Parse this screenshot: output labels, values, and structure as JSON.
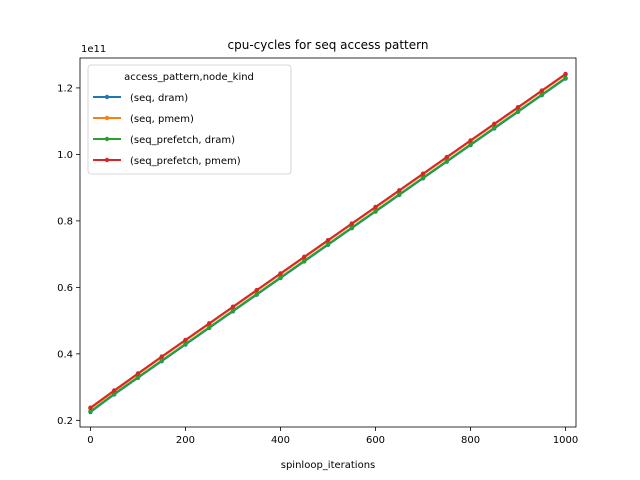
{
  "chart_data": {
    "type": "line",
    "title": "cpu-cycles for seq access pattern",
    "xlabel": "spinloop_iterations",
    "ylabel": "",
    "y_offset_label": "1e11",
    "xlim": [
      -22,
      1022
    ],
    "ylim": [
      0.18,
      1.29
    ],
    "y_scale": 100000000000.0,
    "xticks": [
      0,
      200,
      400,
      600,
      800,
      1000
    ],
    "yticks": [
      0.2,
      0.4,
      0.6,
      0.8,
      1.0,
      1.2
    ],
    "ytick_labels": [
      "0.2",
      "0.4",
      "0.6",
      "0.8",
      "1.0",
      "1.2"
    ],
    "grid": false,
    "legend": {
      "title": "access_pattern,node_kind",
      "placement": "top-left"
    },
    "x": [
      0,
      50,
      100,
      150,
      200,
      250,
      300,
      350,
      400,
      450,
      500,
      550,
      600,
      650,
      700,
      750,
      800,
      850,
      900,
      950,
      1000
    ],
    "series": [
      {
        "name": "(seq, dram)",
        "color": "#1f77b4",
        "values": [
          0.225,
          0.278,
          0.328,
          0.378,
          0.428,
          0.478,
          0.528,
          0.578,
          0.628,
          0.678,
          0.728,
          0.778,
          0.828,
          0.878,
          0.928,
          0.978,
          1.028,
          1.078,
          1.128,
          1.178,
          1.228
        ]
      },
      {
        "name": "(seq, pmem)",
        "color": "#ff7f0e",
        "values": [
          0.236,
          0.288,
          0.339,
          0.39,
          0.44,
          0.49,
          0.54,
          0.59,
          0.64,
          0.69,
          0.74,
          0.79,
          0.84,
          0.89,
          0.94,
          0.99,
          1.04,
          1.09,
          1.14,
          1.19,
          1.24
        ]
      },
      {
        "name": "(seq_prefetch, dram)",
        "color": "#2ca02c",
        "values": [
          0.227,
          0.28,
          0.33,
          0.38,
          0.43,
          0.48,
          0.53,
          0.58,
          0.63,
          0.68,
          0.73,
          0.78,
          0.83,
          0.88,
          0.93,
          0.98,
          1.03,
          1.08,
          1.13,
          1.18,
          1.23
        ]
      },
      {
        "name": "(seq_prefetch, pmem)",
        "color": "#d62728",
        "values": [
          0.238,
          0.29,
          0.341,
          0.392,
          0.442,
          0.492,
          0.542,
          0.592,
          0.642,
          0.692,
          0.742,
          0.792,
          0.842,
          0.892,
          0.942,
          0.992,
          1.042,
          1.092,
          1.142,
          1.192,
          1.242
        ]
      }
    ]
  }
}
